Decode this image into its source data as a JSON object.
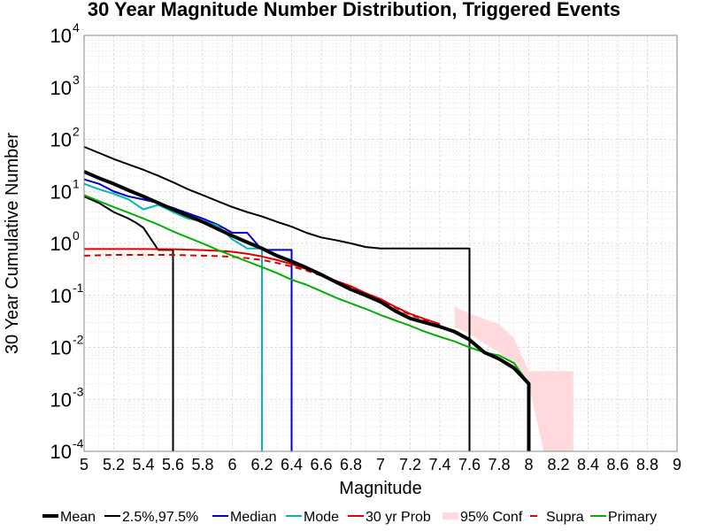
{
  "chart_data": {
    "type": "line",
    "title": "30 Year Magnitude Number Distribution, Triggered Events",
    "xlabel": "Magnitude",
    "ylabel": "30 Year Cumulative Number",
    "xlim": [
      5,
      9
    ],
    "ylim_exponent": [
      -4,
      4
    ],
    "yscale": "log",
    "grid": true,
    "legend_position": "bottom",
    "x_ticks": [
      "5",
      "5.2",
      "5.4",
      "5.6",
      "5.8",
      "6",
      "6.2",
      "6.4",
      "6.6",
      "6.8",
      "7",
      "7.2",
      "7.4",
      "7.6",
      "7.8",
      "8",
      "8.2",
      "8.4",
      "8.6",
      "8.8",
      "9"
    ],
    "y_ticks": [
      {
        "base": "10",
        "exp": "-4"
      },
      {
        "base": "10",
        "exp": "-3"
      },
      {
        "base": "10",
        "exp": "-2"
      },
      {
        "base": "10",
        "exp": "-1"
      },
      {
        "base": "10",
        "exp": "0"
      },
      {
        "base": "10",
        "exp": "1"
      },
      {
        "base": "10",
        "exp": "2"
      },
      {
        "base": "10",
        "exp": "3"
      },
      {
        "base": "10",
        "exp": "4"
      }
    ],
    "band": {
      "name": "95% Conf",
      "color": "#ffd9dc",
      "x": [
        7.5,
        7.6,
        7.7,
        7.8,
        7.9,
        8.0,
        8.1,
        8.2,
        8.3
      ],
      "lower": [
        0.025,
        0.018,
        0.012,
        0.008,
        0.004,
        0.002,
        0.0001,
        0.0001,
        0.0001
      ],
      "upper": [
        0.06,
        0.045,
        0.035,
        0.028,
        0.015,
        0.0035,
        0.0035,
        0.0035,
        0.0035
      ]
    },
    "series": [
      {
        "name": "Mean",
        "color": "#000000",
        "width": 4,
        "dash": "",
        "x": [
          5.0,
          5.1,
          5.2,
          5.3,
          5.4,
          5.5,
          5.6,
          5.7,
          5.8,
          5.9,
          6.0,
          6.1,
          6.2,
          6.3,
          6.4,
          6.5,
          6.6,
          6.7,
          6.8,
          6.9,
          7.0,
          7.1,
          7.2,
          7.3,
          7.4,
          7.5,
          7.6,
          7.7,
          7.8,
          7.9,
          8.0,
          8.0
        ],
        "y": [
          24,
          18,
          14,
          10.5,
          8,
          6,
          4.5,
          3.4,
          2.6,
          1.9,
          1.4,
          1.05,
          0.8,
          0.58,
          0.45,
          0.34,
          0.25,
          0.18,
          0.13,
          0.1,
          0.075,
          0.05,
          0.036,
          0.03,
          0.025,
          0.02,
          0.014,
          0.008,
          0.006,
          0.004,
          0.002,
          5e-05
        ]
      },
      {
        "name": "2.5%,97.5%",
        "color": "#000000",
        "width": 2,
        "dash": "",
        "x": [
          5.0,
          5.1,
          5.2,
          5.3,
          5.4,
          5.5,
          5.6,
          5.7,
          5.8,
          5.9,
          6.0,
          6.1,
          6.2,
          6.3,
          6.4,
          6.5,
          6.6,
          6.7,
          6.8,
          6.9,
          7.0,
          7.1,
          7.2,
          7.3,
          7.4,
          7.5,
          7.6,
          7.6
        ],
        "y": [
          72,
          55,
          42,
          33,
          26,
          20,
          15,
          11,
          8.5,
          6.5,
          5,
          4,
          3.3,
          2.6,
          2.1,
          1.6,
          1.3,
          1.15,
          1.0,
          0.85,
          0.8,
          0.8,
          0.8,
          0.8,
          0.8,
          0.8,
          0.8,
          5e-05
        ]
      },
      {
        "name": "2.5%,97.5% lower",
        "color": "#000000",
        "width": 2,
        "dash": "",
        "x": [
          5.0,
          5.1,
          5.2,
          5.3,
          5.35,
          5.4,
          5.5,
          5.55,
          5.6,
          5.6
        ],
        "y": [
          8,
          6,
          4,
          3,
          2.5,
          2.0,
          0.75,
          0.75,
          0.75,
          5e-05
        ]
      },
      {
        "name": "Median",
        "color": "#0000d0",
        "width": 2,
        "dash": "",
        "x": [
          5.0,
          5.1,
          5.2,
          5.3,
          5.4,
          5.5,
          5.6,
          5.7,
          5.8,
          5.9,
          6.0,
          6.1,
          6.2,
          6.3,
          6.4,
          6.4
        ],
        "y": [
          17,
          14,
          10,
          8,
          7,
          6,
          4.8,
          3.8,
          3.0,
          2.3,
          1.6,
          1.6,
          0.75,
          0.75,
          0.75,
          5e-05
        ]
      },
      {
        "name": "Mode",
        "color": "#00b8b8",
        "width": 2,
        "dash": "",
        "x": [
          5.0,
          5.1,
          5.2,
          5.3,
          5.4,
          5.5,
          5.6,
          5.7,
          5.8,
          5.9,
          6.0,
          6.1,
          6.2,
          6.2
        ],
        "y": [
          14,
          11,
          9,
          7,
          4.5,
          5.5,
          4.0,
          3.0,
          2.7,
          2.2,
          1.2,
          0.8,
          0.8,
          5e-05
        ]
      },
      {
        "name": "30 yr Prob",
        "color": "#e00000",
        "width": 2,
        "dash": "",
        "x": [
          5.0,
          5.2,
          5.4,
          5.6,
          5.8,
          5.9,
          6.0,
          6.1,
          6.2,
          6.3,
          6.4,
          6.5,
          6.6,
          6.7,
          6.8,
          6.9,
          7.0,
          7.1,
          7.2,
          7.3,
          7.4
        ],
        "y": [
          0.78,
          0.78,
          0.78,
          0.77,
          0.74,
          0.72,
          0.69,
          0.63,
          0.56,
          0.48,
          0.4,
          0.32,
          0.25,
          0.19,
          0.15,
          0.11,
          0.085,
          0.06,
          0.044,
          0.035,
          0.028
        ]
      },
      {
        "name": "Supra",
        "color": "#e00000",
        "width": 2,
        "dash": "7 5",
        "x": [
          5.0,
          5.2,
          5.4,
          5.6,
          5.8,
          5.9,
          6.0,
          6.1,
          6.2,
          6.3,
          6.4,
          6.5,
          6.6,
          6.7,
          6.8,
          6.9,
          7.0,
          7.1,
          7.2,
          7.3,
          7.4
        ],
        "y": [
          0.58,
          0.6,
          0.6,
          0.6,
          0.58,
          0.57,
          0.55,
          0.52,
          0.48,
          0.42,
          0.36,
          0.3,
          0.24,
          0.18,
          0.14,
          0.11,
          0.082,
          0.058,
          0.042,
          0.034,
          0.027
        ]
      },
      {
        "name": "Primary",
        "color": "#00b000",
        "width": 2,
        "dash": "",
        "x": [
          5.0,
          5.1,
          5.2,
          5.3,
          5.4,
          5.5,
          5.6,
          5.7,
          5.8,
          5.9,
          6.0,
          6.1,
          6.2,
          6.3,
          6.4,
          6.5,
          6.6,
          6.7,
          6.8,
          6.9,
          7.0,
          7.1,
          7.2,
          7.3,
          7.4,
          7.5,
          7.6,
          7.7,
          7.8,
          7.9,
          8.0,
          8.0
        ],
        "y": [
          8.5,
          6.5,
          5,
          3.9,
          3.0,
          2.3,
          1.7,
          1.3,
          1.0,
          0.75,
          0.58,
          0.45,
          0.35,
          0.27,
          0.2,
          0.16,
          0.12,
          0.09,
          0.07,
          0.055,
          0.042,
          0.033,
          0.026,
          0.02,
          0.016,
          0.013,
          0.01,
          0.008,
          0.007,
          0.005,
          0.002,
          5e-05
        ]
      }
    ],
    "legend": [
      {
        "label": "Mean",
        "color": "#000000",
        "width": 4,
        "dash": ""
      },
      {
        "label": "2.5%,97.5%",
        "color": "#000000",
        "width": 2,
        "dash": ""
      },
      {
        "label": "Median",
        "color": "#0000d0",
        "width": 2,
        "dash": ""
      },
      {
        "label": "Mode",
        "color": "#00b8b8",
        "width": 2,
        "dash": ""
      },
      {
        "label": "30 yr Prob",
        "color": "#e00000",
        "width": 2,
        "dash": ""
      },
      {
        "label": "95% Conf",
        "color": "#ffd9dc",
        "width": 8,
        "dash": ""
      },
      {
        "label": "Supra",
        "color": "#e00000",
        "width": 2,
        "dash": "7 5"
      },
      {
        "label": "Primary",
        "color": "#00b000",
        "width": 2,
        "dash": ""
      }
    ]
  }
}
